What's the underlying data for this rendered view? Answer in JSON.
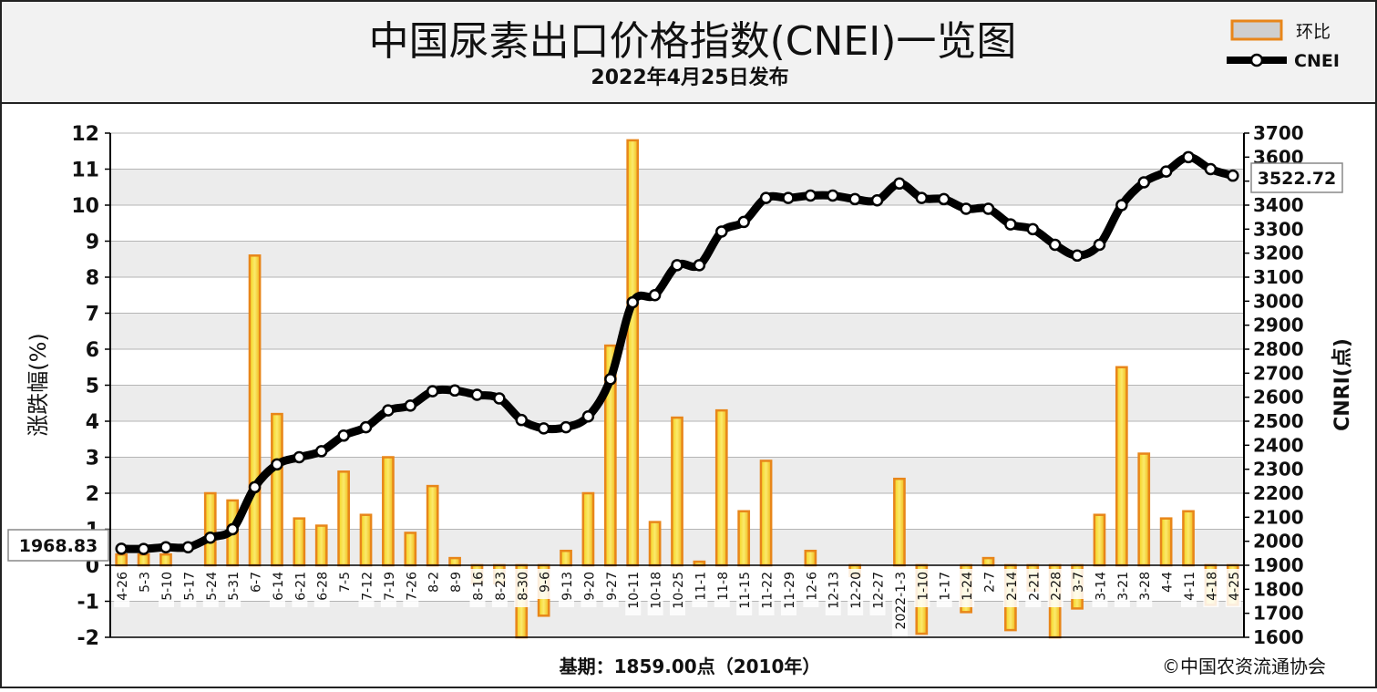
{
  "chart_data": {
    "type": "bar+line",
    "title": "中国尿素出口价格指数(CNEI)一览图",
    "subtitle": "2022年4月25日发布",
    "legend": {
      "position": "top-right",
      "bar_label": "环比",
      "line_label": "CNEI"
    },
    "y_left_label": "涨跌幅(%)",
    "y_right_label": "CNRI(点)",
    "y_left_range": [
      -2,
      12
    ],
    "y_left_ticks": [
      -2,
      -1,
      0,
      1,
      2,
      3,
      4,
      5,
      6,
      7,
      8,
      9,
      10,
      11,
      12
    ],
    "y_right_range": [
      1600,
      3700
    ],
    "y_right_ticks": [
      1600,
      1700,
      1800,
      1900,
      2000,
      2100,
      2200,
      2300,
      2400,
      2500,
      2600,
      2700,
      2800,
      2900,
      3000,
      3100,
      3200,
      3300,
      3400,
      3500,
      3600,
      3700
    ],
    "grid": true,
    "categories": [
      "4-26",
      "5-3",
      "5-10",
      "5-17",
      "5-24",
      "5-31",
      "6-7",
      "6-14",
      "6-21",
      "6-28",
      "7-5",
      "7-12",
      "7-19",
      "7-26",
      "8-2",
      "8-9",
      "8-16",
      "8-23",
      "8-30",
      "9-6",
      "9-13",
      "9-20",
      "9-27",
      "10-11",
      "10-18",
      "10-25",
      "11-1",
      "11-8",
      "11-15",
      "11-22",
      "11-29",
      "12-6",
      "12-13",
      "12-20",
      "12-27",
      "2022-1-3",
      "1-10",
      "1-17",
      "1-24",
      "2-7",
      "2-14",
      "2-21",
      "2-28",
      "3-7",
      "3-14",
      "3-21",
      "3-28",
      "4-4",
      "4-11",
      "4-18",
      "4-25"
    ],
    "series": [
      {
        "name": "环比",
        "type": "bar",
        "axis": "left",
        "color": "#e8861a",
        "fill": "#f5c518",
        "values": [
          0.3,
          0.3,
          0.3,
          0.0,
          2.0,
          1.8,
          8.6,
          4.2,
          1.3,
          1.1,
          2.6,
          1.4,
          3.0,
          0.9,
          2.2,
          0.2,
          -0.5,
          -0.5,
          -2.0,
          -1.4,
          0.4,
          2.0,
          6.1,
          11.8,
          1.2,
          4.1,
          0.1,
          4.3,
          1.5,
          2.9,
          0.0,
          0.4,
          0.0,
          -0.3,
          0.0,
          2.4,
          -1.9,
          0.0,
          -1.3,
          0.2,
          -1.8,
          -0.7,
          -2.0,
          -1.2,
          1.4,
          5.5,
          3.1,
          1.3,
          1.5,
          -1.1,
          -1.1
        ]
      },
      {
        "name": "CNEI",
        "type": "line",
        "axis": "right",
        "color": "#000000",
        "values": [
          1968.83,
          1968,
          1975,
          1975,
          2015,
          2050,
          2225,
          2320,
          2350,
          2375,
          2440,
          2475,
          2545,
          2565,
          2625,
          2628,
          2610,
          2595,
          2505,
          2470,
          2475,
          2520,
          2675,
          2995,
          3025,
          3150,
          3150,
          3290,
          3330,
          3430,
          3430,
          3440,
          3440,
          3425,
          3420,
          3490,
          3430,
          3425,
          3385,
          3385,
          3320,
          3300,
          3235,
          3190,
          3235,
          3400,
          3495,
          3540,
          3600,
          3550,
          3522.72
        ]
      }
    ],
    "annotations": {
      "start_value": "1968.83",
      "end_value": "3522.72"
    },
    "footer": {
      "base": "基期：1859.00点（2010年）",
      "copyright": "©中国农资流通协会"
    }
  }
}
